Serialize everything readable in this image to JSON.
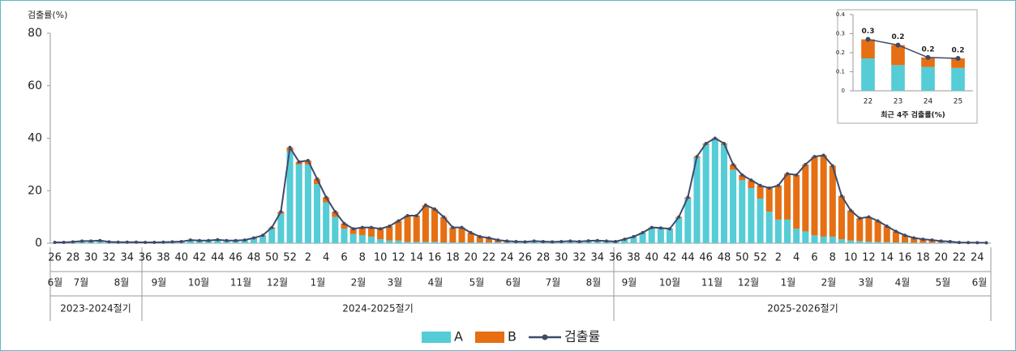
{
  "chart_data": [
    {
      "type": "bar",
      "stacked": true,
      "y_label": "검출률(%)",
      "categories": [
        "26",
        null,
        "28",
        null,
        "30",
        null,
        "32",
        null,
        "34",
        null,
        "36",
        null,
        "38",
        null,
        "40",
        null,
        "42",
        null,
        "44",
        null,
        "46",
        null,
        "48",
        null,
        "50",
        null,
        "52",
        null,
        "2",
        null,
        "4",
        null,
        "6",
        null,
        "8",
        null,
        "10",
        null,
        "12",
        null,
        "14",
        null,
        "16",
        null,
        "18",
        null,
        "20",
        null,
        "22",
        null,
        "24",
        null,
        "26",
        null,
        "28",
        null,
        "30",
        null,
        "32",
        null,
        "34",
        null,
        "36",
        null,
        "38",
        null,
        "40",
        null,
        "42",
        null,
        "44",
        null,
        "46",
        null,
        "48",
        null,
        "50",
        null,
        "52",
        null,
        "2",
        null,
        "4",
        null,
        "6",
        null,
        "8",
        null,
        "10",
        null,
        "12",
        null,
        "14",
        null,
        "16",
        null,
        "18",
        null,
        "20",
        null,
        "22",
        null,
        "24",
        null
      ],
      "months": [
        "6월",
        "7월",
        "8월",
        "9월",
        "10월",
        "11월",
        "12월",
        "1월",
        "2월",
        "3월",
        "4월",
        "5월",
        "6월",
        "7월",
        "8월",
        "9월",
        "10월",
        "11월",
        "12월",
        "1월",
        "2월",
        "3월",
        "4월",
        "5월",
        "6월"
      ],
      "seasons": [
        "2023-2024절기",
        "2024-2025절기",
        "2025-2026절기"
      ],
      "series": [
        {
          "name": "A",
          "color": "#55ccd6",
          "values": [
            0.2,
            0.2,
            0.4,
            0.7,
            0.7,
            0.9,
            0.4,
            0.3,
            0.3,
            0.3,
            0.2,
            0.2,
            0.3,
            0.4,
            0.5,
            1.0,
            0.8,
            0.8,
            1.1,
            0.8,
            0.8,
            1.0,
            1.7,
            2.6,
            5.4,
            11.2,
            35.0,
            30.0,
            30.0,
            22.5,
            15.5,
            10.0,
            5.5,
            3.5,
            3.0,
            2.5,
            1.5,
            1.0,
            1.0,
            0.5,
            0.5,
            0.5,
            0.5,
            0.3,
            0.3,
            0.3,
            0.3,
            0.3,
            0.3,
            0.3,
            0.3,
            0.3,
            0.3,
            0.6,
            0.4,
            0.3,
            0.4,
            0.6,
            0.4,
            0.6,
            0.7,
            0.6,
            0.5,
            1.4,
            2.4,
            3.8,
            5.8,
            5.5,
            5.2,
            9.6,
            17.0,
            32.5,
            37.5,
            39.5,
            37.5,
            28.0,
            24.0,
            21.0,
            17.0,
            12.0,
            9.0,
            9.0,
            5.5,
            4.5,
            3.0,
            2.5,
            2.5,
            1.5,
            1.0,
            0.8,
            0.6,
            0.5,
            0.4,
            0.3,
            0.3,
            0.2,
            0.2,
            0.2,
            0.2,
            0.2,
            0.17,
            0.135,
            0.125,
            0.12
          ]
        },
        {
          "name": "B",
          "color": "#e56f12",
          "values": [
            0.1,
            0.1,
            0.1,
            0.1,
            0.1,
            0.1,
            0.1,
            0.1,
            0.1,
            0.1,
            0.1,
            0.1,
            0.1,
            0.1,
            0.1,
            0.2,
            0.2,
            0.2,
            0.2,
            0.2,
            0.2,
            0.2,
            0.3,
            0.4,
            0.6,
            0.8,
            1.5,
            1.0,
            1.5,
            2.0,
            2.0,
            2.0,
            2.0,
            2.0,
            3.0,
            3.5,
            4.0,
            5.5,
            7.5,
            10.0,
            10.0,
            14.0,
            12.5,
            9.7,
            5.7,
            5.7,
            3.7,
            2.2,
            1.7,
            0.9,
            0.5,
            0.3,
            0.2,
            0.2,
            0.2,
            0.2,
            0.2,
            0.2,
            0.2,
            0.3,
            0.3,
            0.2,
            0.1,
            0.1,
            0.1,
            0.2,
            0.2,
            0.3,
            0.3,
            0.4,
            0.5,
            0.5,
            0.5,
            0.5,
            0.5,
            2.0,
            2.0,
            3.0,
            5.0,
            9.0,
            13.0,
            17.5,
            20.5,
            25.5,
            30.0,
            31.0,
            27.0,
            16.5,
            11.5,
            8.7,
            9.4,
            8.0,
            6.1,
            4.2,
            2.7,
            1.8,
            1.3,
            1.0,
            0.6,
            0.4,
            0.1,
            0.105,
            0.05,
            0.05
          ]
        },
        {
          "name": "검출률",
          "type": "line",
          "color": "#3d4a6b",
          "values": [
            0.3,
            0.3,
            0.5,
            0.8,
            0.8,
            1.0,
            0.5,
            0.4,
            0.4,
            0.4,
            0.3,
            0.3,
            0.4,
            0.5,
            0.6,
            1.2,
            1.0,
            1.0,
            1.3,
            1.0,
            1.0,
            1.2,
            2.0,
            3.0,
            6.0,
            12.0,
            36.5,
            31.0,
            31.5,
            24.5,
            17.5,
            12.0,
            7.5,
            5.5,
            6.0,
            6.0,
            5.5,
            6.5,
            8.5,
            10.5,
            10.5,
            14.5,
            13.0,
            10.0,
            6.0,
            6.0,
            4.0,
            2.5,
            2.0,
            1.2,
            0.8,
            0.6,
            0.5,
            0.8,
            0.6,
            0.5,
            0.6,
            0.8,
            0.6,
            0.9,
            1.0,
            0.8,
            0.6,
            1.5,
            2.5,
            4.0,
            6.0,
            5.8,
            5.5,
            10.0,
            17.5,
            33.0,
            38.0,
            40.0,
            38.0,
            30.0,
            26.0,
            24.0,
            22.0,
            21.0,
            22.0,
            26.5,
            26.0,
            30.0,
            33.0,
            33.5,
            29.5,
            18.0,
            12.5,
            9.5,
            10.0,
            8.5,
            6.5,
            4.5,
            3.0,
            2.0,
            1.5,
            1.2,
            0.8,
            0.6,
            0.27,
            0.24,
            0.175,
            0.17
          ]
        }
      ],
      "ylim": [
        0,
        80
      ],
      "yticks": [
        0,
        20,
        40,
        60,
        80
      ],
      "grid": false,
      "legend": "bottom"
    },
    {
      "type": "bar",
      "stacked": true,
      "x_label": "최근 4주 검출률(%)",
      "categories": [
        "22",
        "23",
        "24",
        "25"
      ],
      "series": [
        {
          "name": "A",
          "color": "#55ccd6",
          "values": [
            0.17,
            0.135,
            0.125,
            0.12
          ]
        },
        {
          "name": "B",
          "color": "#e56f12",
          "values": [
            0.1,
            0.105,
            0.05,
            0.05
          ]
        },
        {
          "name": "검출률",
          "type": "line",
          "color": "#3d4a6b",
          "values": [
            0.27,
            0.24,
            0.175,
            0.17
          ],
          "value_labels": [
            "0.3",
            "0.2",
            "0.2",
            "0.2"
          ]
        }
      ],
      "ylim": [
        0,
        0.4
      ],
      "yticks": [
        0,
        0.1,
        0.2,
        0.3,
        0.4
      ],
      "grid": false
    }
  ]
}
